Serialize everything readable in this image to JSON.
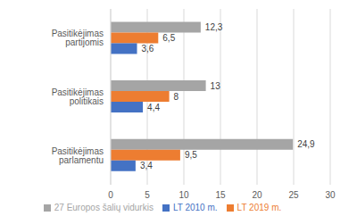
{
  "chart_data": {
    "type": "bar",
    "orientation": "horizontal",
    "categories": [
      "Pasitikėjimas partijomis",
      "Pasitikėjimas politikais",
      "Pasitikėjimas parlamentu"
    ],
    "series": [
      {
        "name": "27 Europos šalių vidurkis",
        "color": "#a5a5a5",
        "values": [
          12.3,
          13,
          24.9
        ],
        "value_labels": [
          "12,3",
          "13",
          "24,9"
        ]
      },
      {
        "name": "LT 2019 m.",
        "color": "#ed7d31",
        "values": [
          6.5,
          8,
          9.5
        ],
        "value_labels": [
          "6,5",
          "8",
          "9,5"
        ]
      },
      {
        "name": "LT 2010 m.",
        "color": "#4472c4",
        "values": [
          3.6,
          4.4,
          3.4
        ],
        "value_labels": [
          "3,6",
          "4,4",
          "3,4"
        ]
      }
    ],
    "xlim": [
      0,
      30
    ],
    "xticks": [
      0,
      5,
      10,
      15,
      20,
      25,
      30
    ],
    "grid": true,
    "legend": "bottom",
    "data_labels": true
  }
}
